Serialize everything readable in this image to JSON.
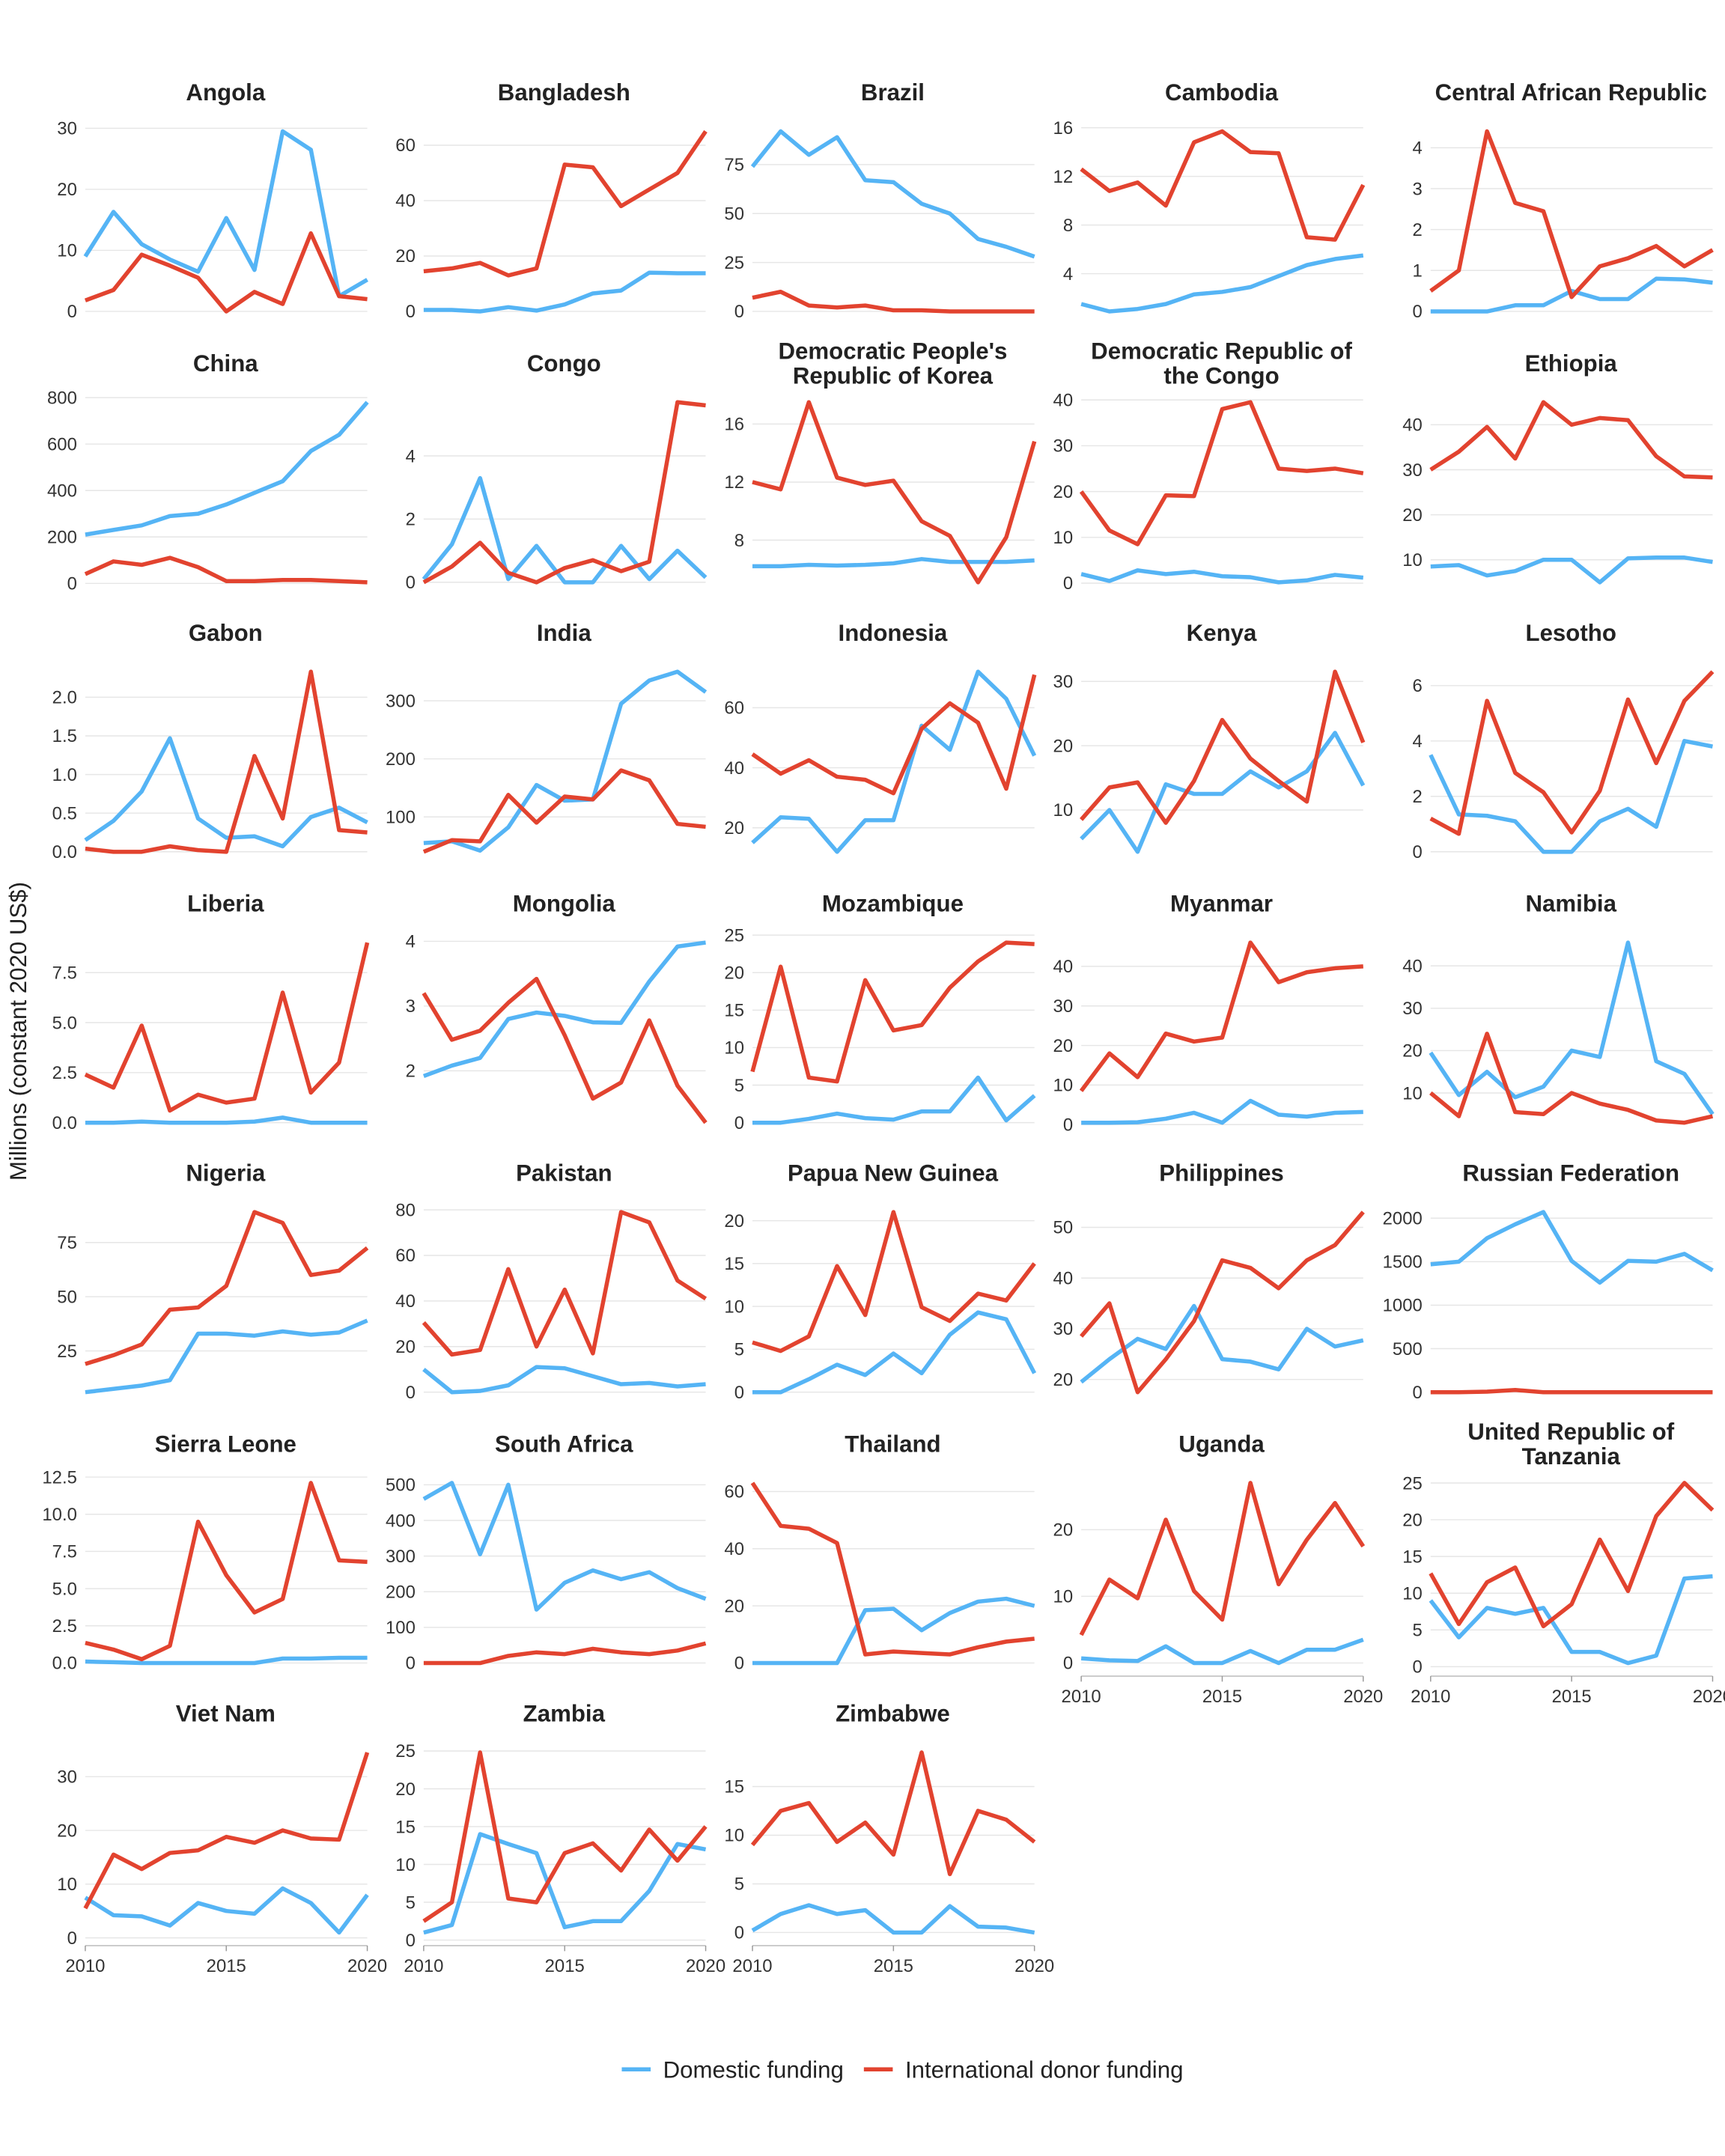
{
  "chart_data": {
    "type": "line",
    "ylabel": "Millions (constant 2020 US$)",
    "x": [
      2010,
      2011,
      2012,
      2013,
      2014,
      2015,
      2016,
      2017,
      2018,
      2019,
      2020
    ],
    "x_ticks": [
      "2010",
      "2015",
      "2020"
    ],
    "legend_position": "bottom",
    "grid": true,
    "series_names": [
      "Domestic funding",
      "International donor funding"
    ],
    "colors": {
      "domestic": "#55B4F5",
      "international": "#E2432F"
    },
    "panels": [
      {
        "title_lines": [
          "Angola"
        ],
        "ticks": [
          "0",
          "10",
          "20",
          "30"
        ],
        "domestic": [
          9,
          16.3,
          11,
          8.5,
          6.5,
          15.3,
          6.8,
          29.5,
          26.5,
          2.5,
          5.2
        ],
        "international": [
          1.8,
          3.5,
          9.3,
          7.5,
          5.5,
          0,
          3.2,
          1.2,
          12.8,
          2.5,
          2
        ]
      },
      {
        "title_lines": [
          "Bangladesh"
        ],
        "ticks": [
          "0",
          "20",
          "40",
          "60"
        ],
        "domestic": [
          0.5,
          0.5,
          0,
          1.5,
          0.3,
          2.5,
          6.5,
          7.5,
          14,
          13.8,
          13.8
        ],
        "international": [
          14.5,
          15.5,
          17.5,
          13,
          15.5,
          53,
          52,
          38,
          44,
          50,
          65
        ]
      },
      {
        "title_lines": [
          "Brazil"
        ],
        "ticks": [
          "0",
          "25",
          "50",
          "75"
        ],
        "domestic": [
          74,
          92,
          80,
          89,
          67,
          66,
          55,
          50,
          37,
          33,
          28
        ],
        "international": [
          7,
          10,
          3,
          2,
          3,
          0.5,
          0.5,
          0,
          0,
          0,
          0
        ]
      },
      {
        "title_lines": [
          "Cambodia"
        ],
        "ticks": [
          "4",
          "8",
          "12",
          "16"
        ],
        "domestic": [
          1.5,
          0.9,
          1.1,
          1.5,
          2.3,
          2.5,
          2.9,
          3.8,
          4.7,
          5.2,
          5.5
        ],
        "international": [
          12.6,
          10.8,
          11.5,
          9.6,
          14.8,
          15.7,
          14,
          13.9,
          7,
          6.8,
          11.3
        ]
      },
      {
        "title_lines": [
          "Central African Republic"
        ],
        "ticks": [
          "0",
          "1",
          "2",
          "3",
          "4"
        ],
        "domestic": [
          0,
          0,
          0,
          0.15,
          0.15,
          0.5,
          0.3,
          0.3,
          0.8,
          0.78,
          0.7
        ],
        "international": [
          0.5,
          1,
          4.4,
          2.65,
          2.45,
          0.35,
          1.1,
          1.3,
          1.6,
          1.1,
          1.5
        ]
      },
      {
        "title_lines": [
          "China"
        ],
        "ticks": [
          "0",
          "200",
          "400",
          "600",
          "800"
        ],
        "domestic": [
          210,
          230,
          250,
          290,
          300,
          340,
          390,
          440,
          570,
          640,
          780
        ],
        "international": [
          40,
          95,
          80,
          110,
          70,
          10,
          10,
          15,
          15,
          10,
          5
        ]
      },
      {
        "title_lines": [
          "Congo"
        ],
        "ticks": [
          "0",
          "2",
          "4"
        ],
        "domestic": [
          0.1,
          1.2,
          3.3,
          0.1,
          1.15,
          0,
          0,
          1.15,
          0.1,
          1,
          0.15
        ],
        "international": [
          0,
          0.5,
          1.25,
          0.3,
          0,
          0.45,
          0.7,
          0.35,
          0.65,
          5.7,
          5.6
        ]
      },
      {
        "title_lines": [
          "Democratic People's",
          "Republic of Korea"
        ],
        "ticks": [
          "8",
          "12",
          "16"
        ],
        "domestic": [
          6.2,
          6.2,
          6.3,
          6.25,
          6.3,
          6.4,
          6.7,
          6.5,
          6.5,
          6.5,
          6.6
        ],
        "international": [
          12,
          11.5,
          17.5,
          12.3,
          11.8,
          12.1,
          9.3,
          8.3,
          5.1,
          8.2,
          14.8
        ]
      },
      {
        "title_lines": [
          "Democratic Republic of",
          "the Congo"
        ],
        "ticks": [
          "0",
          "10",
          "20",
          "30",
          "40"
        ],
        "domestic": [
          2,
          0.5,
          2.8,
          2,
          2.5,
          1.5,
          1.3,
          0.2,
          0.6,
          1.8,
          1.2
        ],
        "international": [
          20,
          11.5,
          8.5,
          19.2,
          19,
          38,
          39.5,
          25,
          24.5,
          25,
          24
        ]
      },
      {
        "title_lines": [
          "Ethiopia"
        ],
        "ticks": [
          "10",
          "20",
          "30",
          "40"
        ],
        "domestic": [
          8.5,
          8.8,
          6.5,
          7.5,
          10,
          10,
          5,
          10.3,
          10.5,
          10.5,
          9.5
        ],
        "international": [
          30,
          34,
          39.5,
          32.5,
          45,
          40,
          41.5,
          41,
          33,
          28.5,
          28.3
        ]
      },
      {
        "title_lines": [
          "Gabon"
        ],
        "ticks": [
          "0.0",
          "0.5",
          "1.0",
          "1.5",
          "2.0"
        ],
        "domestic": [
          0.15,
          0.4,
          0.78,
          1.47,
          0.43,
          0.18,
          0.2,
          0.07,
          0.45,
          0.57,
          0.38
        ],
        "international": [
          0.04,
          0,
          0,
          0.07,
          0.02,
          0,
          1.24,
          0.43,
          2.33,
          0.28,
          0.25
        ]
      },
      {
        "title_lines": [
          "India"
        ],
        "ticks": [
          "100",
          "200",
          "300"
        ],
        "domestic": [
          55,
          58,
          42,
          82,
          155,
          128,
          130,
          295,
          335,
          350,
          315
        ],
        "international": [
          40,
          60,
          58,
          138,
          90,
          135,
          130,
          180,
          163,
          88,
          83
        ]
      },
      {
        "title_lines": [
          "Indonesia"
        ],
        "ticks": [
          "20",
          "40",
          "60"
        ],
        "domestic": [
          15,
          23.5,
          23,
          12,
          22.5,
          22.5,
          54,
          46,
          72,
          63,
          44
        ],
        "international": [
          44.5,
          38,
          42.5,
          37,
          36,
          31.5,
          53,
          61.5,
          55,
          33,
          71
        ]
      },
      {
        "title_lines": [
          "Kenya"
        ],
        "ticks": [
          "10",
          "20",
          "30"
        ],
        "domestic": [
          5.5,
          10,
          3.5,
          14,
          12.5,
          12.5,
          16,
          13.5,
          16,
          22,
          13.8
        ],
        "international": [
          8.5,
          13.5,
          14.3,
          8,
          14.5,
          24,
          18,
          14.5,
          11.3,
          31.5,
          20.5
        ]
      },
      {
        "title_lines": [
          "Lesotho"
        ],
        "ticks": [
          "0",
          "2",
          "4",
          "6"
        ],
        "domestic": [
          3.5,
          1.35,
          1.3,
          1.1,
          0,
          0,
          1.1,
          1.55,
          0.9,
          4,
          3.8
        ],
        "international": [
          1.2,
          0.65,
          5.45,
          2.85,
          2.15,
          0.7,
          2.2,
          5.5,
          3.2,
          5.45,
          6.5
        ]
      },
      {
        "title_lines": [
          "Liberia"
        ],
        "ticks": [
          "0.0",
          "2.5",
          "5.0",
          "7.5"
        ],
        "domestic": [
          0,
          0,
          0.05,
          0,
          0,
          0,
          0.05,
          0.25,
          0,
          0,
          0
        ],
        "international": [
          2.4,
          1.75,
          4.85,
          0.6,
          1.4,
          1,
          1.2,
          6.5,
          1.5,
          3,
          9
        ]
      },
      {
        "title_lines": [
          "Mongolia"
        ],
        "ticks": [
          "2",
          "3",
          "4"
        ],
        "domestic": [
          1.92,
          2.08,
          2.2,
          2.8,
          2.9,
          2.85,
          2.75,
          2.74,
          3.38,
          3.92,
          3.98
        ],
        "international": [
          3.2,
          2.48,
          2.62,
          3.05,
          3.42,
          2.55,
          1.57,
          1.82,
          2.78,
          1.77,
          1.2
        ]
      },
      {
        "title_lines": [
          "Mozambique"
        ],
        "ticks": [
          "0",
          "5",
          "10",
          "15",
          "20",
          "25"
        ],
        "domestic": [
          0,
          0,
          0.5,
          1.2,
          0.6,
          0.4,
          1.5,
          1.5,
          6,
          0.3,
          3.6
        ],
        "international": [
          6.8,
          20.8,
          6,
          5.5,
          19,
          12.3,
          13,
          18,
          21.5,
          24,
          23.8
        ]
      },
      {
        "title_lines": [
          "Myanmar"
        ],
        "ticks": [
          "0",
          "10",
          "20",
          "30",
          "40"
        ],
        "domestic": [
          0.5,
          0.5,
          0.6,
          1.5,
          3,
          0.5,
          6,
          2.5,
          2,
          3,
          3.2
        ],
        "international": [
          8.5,
          18,
          12,
          23,
          21,
          22,
          46,
          36,
          38.5,
          39.5,
          40
        ]
      },
      {
        "title_lines": [
          "Namibia"
        ],
        "ticks": [
          "10",
          "20",
          "30",
          "40"
        ],
        "domestic": [
          19.5,
          9.5,
          15,
          9,
          11.5,
          20,
          18.5,
          45.5,
          17.5,
          14.5,
          5
        ],
        "international": [
          10,
          4.5,
          24,
          5.5,
          5,
          10,
          7.5,
          6,
          3.5,
          3,
          4.5
        ]
      },
      {
        "title_lines": [
          "Nigeria"
        ],
        "ticks": [
          "25",
          "50",
          "75"
        ],
        "domestic": [
          6,
          7.5,
          9,
          11.5,
          33,
          33,
          32,
          34,
          32.5,
          33.5,
          39
        ],
        "international": [
          19,
          23,
          28,
          44,
          45,
          55,
          89,
          84,
          60,
          62,
          72.5
        ]
      },
      {
        "title_lines": [
          "Pakistan"
        ],
        "ticks": [
          "0",
          "20",
          "40",
          "60",
          "80"
        ],
        "domestic": [
          10,
          0,
          0.5,
          3,
          11,
          10.5,
          7,
          3.5,
          4,
          2.5,
          3.5
        ],
        "international": [
          30.5,
          16.5,
          18.5,
          54,
          20,
          45,
          17,
          79,
          74.5,
          49,
          41
        ]
      },
      {
        "title_lines": [
          "Papua New Guinea"
        ],
        "ticks": [
          "0",
          "5",
          "10",
          "15",
          "20"
        ],
        "domestic": [
          0,
          0,
          1.5,
          3.2,
          2,
          4.5,
          2.2,
          6.7,
          9.3,
          8.5,
          2.2
        ],
        "international": [
          5.8,
          4.8,
          6.5,
          14.7,
          9,
          21,
          9.9,
          8.3,
          11.5,
          10.7,
          15
        ]
      },
      {
        "title_lines": [
          "Philippines"
        ],
        "ticks": [
          "20",
          "30",
          "40",
          "50"
        ],
        "domestic": [
          19.5,
          24,
          28,
          26,
          34.5,
          24,
          23.5,
          22,
          30,
          26.5,
          27.7
        ],
        "international": [
          28.5,
          35,
          17.5,
          24,
          31.5,
          43.5,
          42,
          38,
          43.5,
          46.5,
          53
        ]
      },
      {
        "title_lines": [
          "Russian Federation"
        ],
        "ticks": [
          "0",
          "500",
          "1000",
          "1500",
          "2000"
        ],
        "domestic": [
          1470,
          1500,
          1770,
          1930,
          2070,
          1510,
          1260,
          1510,
          1500,
          1590,
          1400
        ],
        "international": [
          0,
          0,
          5,
          25,
          0,
          0,
          0,
          0,
          0,
          0,
          0
        ]
      },
      {
        "title_lines": [
          "Sierra Leone"
        ],
        "ticks": [
          "0.0",
          "2.5",
          "5.0",
          "7.5",
          "10.0",
          "12.5"
        ],
        "domestic": [
          0.1,
          0.05,
          0,
          0,
          0,
          0,
          0,
          0.3,
          0.3,
          0.35,
          0.35
        ],
        "international": [
          1.35,
          0.9,
          0.25,
          1.15,
          9.5,
          5.9,
          3.4,
          4.3,
          12.1,
          6.9,
          6.8
        ]
      },
      {
        "title_lines": [
          "South Africa"
        ],
        "ticks": [
          "0",
          "100",
          "200",
          "300",
          "400",
          "500"
        ],
        "domestic": [
          460,
          505,
          305,
          500,
          150,
          225,
          260,
          235,
          255,
          210,
          180
        ],
        "international": [
          0,
          0,
          0,
          20,
          30,
          25,
          40,
          30,
          25,
          35,
          55
        ]
      },
      {
        "title_lines": [
          "Thailand"
        ],
        "ticks": [
          "0",
          "20",
          "40",
          "60"
        ],
        "domestic": [
          0,
          0,
          0,
          0,
          18.5,
          19,
          11.5,
          17.5,
          21.5,
          22.5,
          20
        ],
        "international": [
          63,
          48,
          47,
          42,
          3,
          4,
          3.5,
          3,
          5.5,
          7.5,
          8.5
        ]
      },
      {
        "title_lines": [
          "Uganda"
        ],
        "ticks": [
          "0",
          "10",
          "20"
        ],
        "domestic": [
          0.7,
          0.4,
          0.3,
          2.5,
          0,
          0,
          1.8,
          0,
          2,
          2,
          3.5
        ],
        "international": [
          4.2,
          12.5,
          9.7,
          21.5,
          10.8,
          6.5,
          27,
          11.8,
          18.5,
          24,
          17.5
        ]
      },
      {
        "title_lines": [
          "United Republic of",
          "Tanzania"
        ],
        "ticks": [
          "0",
          "5",
          "10",
          "15",
          "20",
          "25"
        ],
        "domestic": [
          9,
          4,
          8,
          7.2,
          8,
          2,
          2,
          0.5,
          1.5,
          12,
          12.3
        ],
        "international": [
          12.7,
          5.8,
          11.5,
          13.5,
          5.5,
          8.5,
          17.3,
          10.3,
          20.5,
          25,
          21.3
        ]
      },
      {
        "title_lines": [
          "Viet Nam"
        ],
        "ticks": [
          "0",
          "10",
          "20",
          "30"
        ],
        "domestic": [
          7.5,
          4.2,
          4,
          2.3,
          6.5,
          5,
          4.5,
          9.2,
          6.5,
          1,
          8
        ],
        "international": [
          5.5,
          15.5,
          12.8,
          15.8,
          16.3,
          18.8,
          17.7,
          20,
          18.5,
          18.3,
          34.5
        ]
      },
      {
        "title_lines": [
          "Zambia"
        ],
        "ticks": [
          "0",
          "5",
          "10",
          "15",
          "20",
          "25"
        ],
        "domestic": [
          1,
          2,
          14,
          12.7,
          11.5,
          1.7,
          2.5,
          2.5,
          6.5,
          12.7,
          12
        ],
        "international": [
          2.5,
          5,
          24.8,
          5.5,
          5,
          11.5,
          12.8,
          9.2,
          14.6,
          10.5,
          15
        ]
      },
      {
        "title_lines": [
          "Zimbabwe"
        ],
        "ticks": [
          "0",
          "5",
          "10",
          "15"
        ],
        "domestic": [
          0.2,
          1.9,
          2.8,
          1.9,
          2.3,
          0,
          0,
          2.7,
          0.6,
          0.5,
          0
        ],
        "international": [
          9,
          12.5,
          13.3,
          9.3,
          11.3,
          8,
          18.5,
          6,
          12.5,
          11.6,
          9.3
        ]
      }
    ]
  }
}
